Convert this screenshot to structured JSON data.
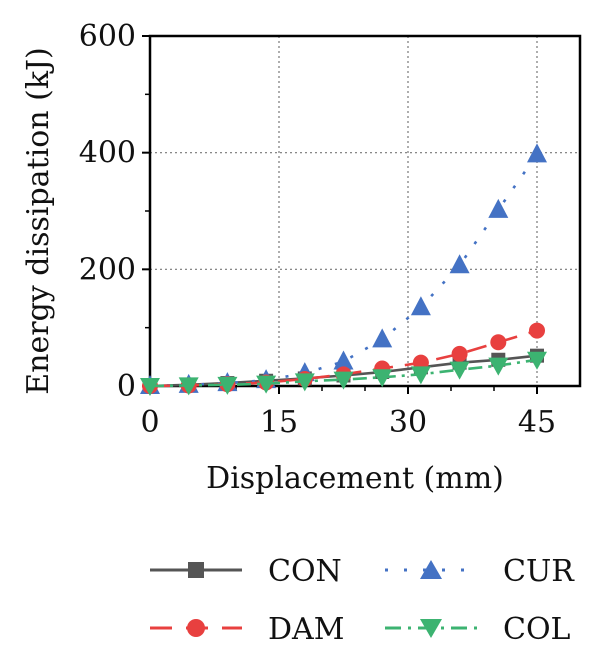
{
  "chart_data": {
    "type": "line",
    "title": "",
    "xlabel": "Displacement (mm)",
    "ylabel": "Energy dissipation (kJ)",
    "xlim": [
      0,
      50
    ],
    "ylim": [
      0,
      600
    ],
    "xticks": [
      0,
      15,
      30,
      45
    ],
    "yticks": [
      0,
      200,
      400,
      600
    ],
    "xtick_labels": [
      "0",
      "15",
      "30",
      "45"
    ],
    "ytick_labels": [
      "0",
      "200",
      "400",
      "600"
    ],
    "grid": true,
    "legend_position": "bottom",
    "series": [
      {
        "name": "CON",
        "color": "#555555",
        "marker": "square",
        "line": "solid",
        "x": [
          0,
          4.5,
          9,
          13.5,
          18,
          22.5,
          27,
          31.5,
          36,
          40.5,
          45
        ],
        "y": [
          0,
          2,
          5,
          9,
          13,
          18,
          24,
          32,
          40,
          45,
          52
        ]
      },
      {
        "name": "CUR",
        "color": "#4472c4",
        "marker": "triangle-up",
        "line": "dotted",
        "x": [
          0,
          4.5,
          9,
          13.5,
          18,
          22.5,
          27,
          31.5,
          36,
          40.5,
          45
        ],
        "y": [
          0,
          2,
          5,
          10,
          22,
          42,
          80,
          135,
          207,
          302,
          397
        ]
      },
      {
        "name": "DAM",
        "color": "#e8403f",
        "marker": "circle",
        "line": "dashed",
        "x": [
          0,
          4.5,
          9,
          13.5,
          18,
          22.5,
          27,
          31.5,
          36,
          40.5,
          45
        ],
        "y": [
          0,
          1,
          3,
          6,
          12,
          20,
          30,
          40,
          55,
          75,
          95
        ]
      },
      {
        "name": "COL",
        "color": "#3cb371",
        "marker": "triangle-down",
        "line": "dashdot",
        "x": [
          0,
          4.5,
          9,
          13.5,
          18,
          22.5,
          27,
          31.5,
          36,
          40.5,
          45
        ],
        "y": [
          0,
          1,
          2,
          4,
          8,
          11,
          15,
          20,
          28,
          35,
          45
        ]
      }
    ]
  }
}
